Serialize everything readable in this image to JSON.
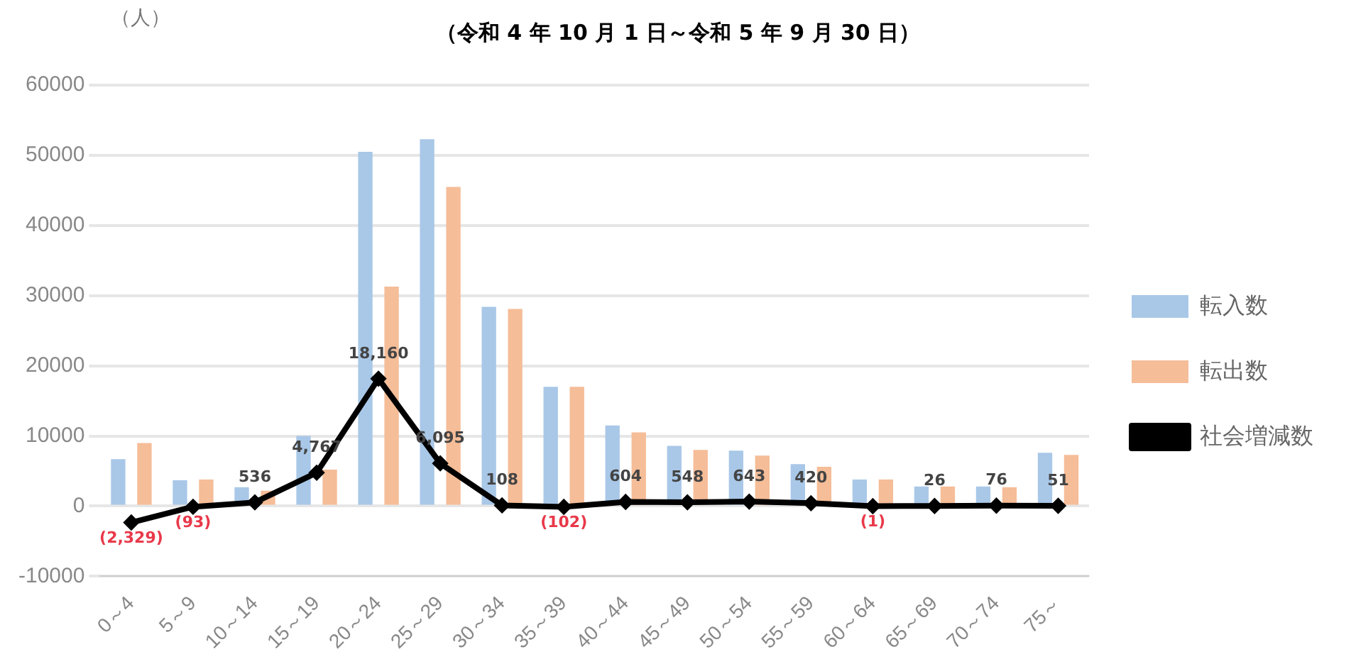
{
  "chart_data": {
    "type": "bar",
    "title": "（令和 4 年 10 月 1 日～令和 5 年 9 月 30 日）",
    "ylabel": "（人）",
    "categories": [
      "0～4",
      "5～9",
      "10～14",
      "15～19",
      "20～24",
      "25～29",
      "30～34",
      "35～39",
      "40～44",
      "45～49",
      "50～54",
      "55～59",
      "60～64",
      "65～69",
      "70～74",
      "75～"
    ],
    "series": [
      {
        "name": "転入数",
        "color": "#a9c8e8",
        "values": [
          6700,
          3700,
          2700,
          10000,
          50500,
          52300,
          28400,
          17000,
          11500,
          8600,
          7900,
          6000,
          3800,
          2800,
          2800,
          7600
        ]
      },
      {
        "name": "転出数",
        "color": "#f5bd98",
        "values": [
          9000,
          3800,
          2200,
          5200,
          31300,
          45500,
          28100,
          17000,
          10500,
          8000,
          7200,
          5600,
          3800,
          2800,
          2700,
          7300
        ]
      },
      {
        "name": "社会増減数",
        "type": "line",
        "color": "#000000",
        "marker": "diamond",
        "values": [
          -2329,
          -93,
          536,
          4767,
          18160,
          6095,
          108,
          -102,
          604,
          548,
          643,
          420,
          -1,
          26,
          76,
          51
        ],
        "value_labels": [
          "(2,329)",
          "(93)",
          "536",
          "4,767",
          "18,160",
          "6,095",
          "108",
          "(102)",
          "604",
          "548",
          "643",
          "420",
          "(1)",
          "26",
          "76",
          "51"
        ]
      }
    ],
    "ylim": [
      -10000,
      60000
    ],
    "yticks": [
      -10000,
      0,
      10000,
      20000,
      30000,
      40000,
      50000,
      60000
    ],
    "grid": "y",
    "legend": "right"
  }
}
